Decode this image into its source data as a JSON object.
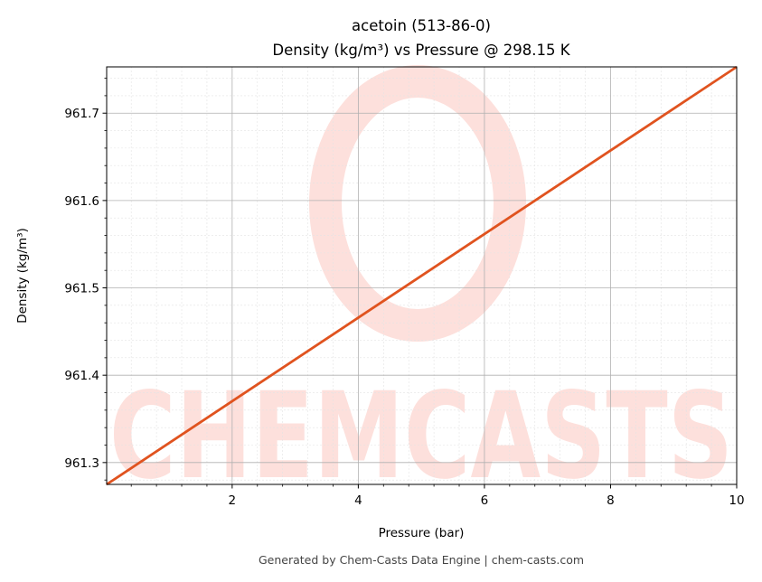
{
  "chart_data": {
    "type": "line",
    "title_line1": "acetoin (513-86-0)",
    "title_line2": "Density (kg/m³) vs Pressure @ 298.15 K",
    "xlabel": "Pressure (bar)",
    "ylabel": "Density (kg/m³)",
    "xlim": [
      0.01,
      10
    ],
    "ylim": [
      961.275,
      961.753
    ],
    "x_ticks": [
      2,
      4,
      6,
      8,
      10
    ],
    "x_tick_labels": [
      "2",
      "4",
      "6",
      "8",
      "10"
    ],
    "y_ticks": [
      961.3,
      961.4,
      961.5,
      961.6,
      961.7
    ],
    "y_tick_labels": [
      "961.3",
      "961.4",
      "961.5",
      "961.6",
      "961.7"
    ],
    "grid": true,
    "series": [
      {
        "color": "#e0531f",
        "x": [
          0.01,
          10
        ],
        "y": [
          961.275,
          961.753
        ]
      }
    ]
  },
  "watermark": {
    "text": "CHEMCASTS",
    "color": "#fde0dc"
  },
  "footer": "Generated by Chem-Casts Data Engine | chem-casts.com"
}
